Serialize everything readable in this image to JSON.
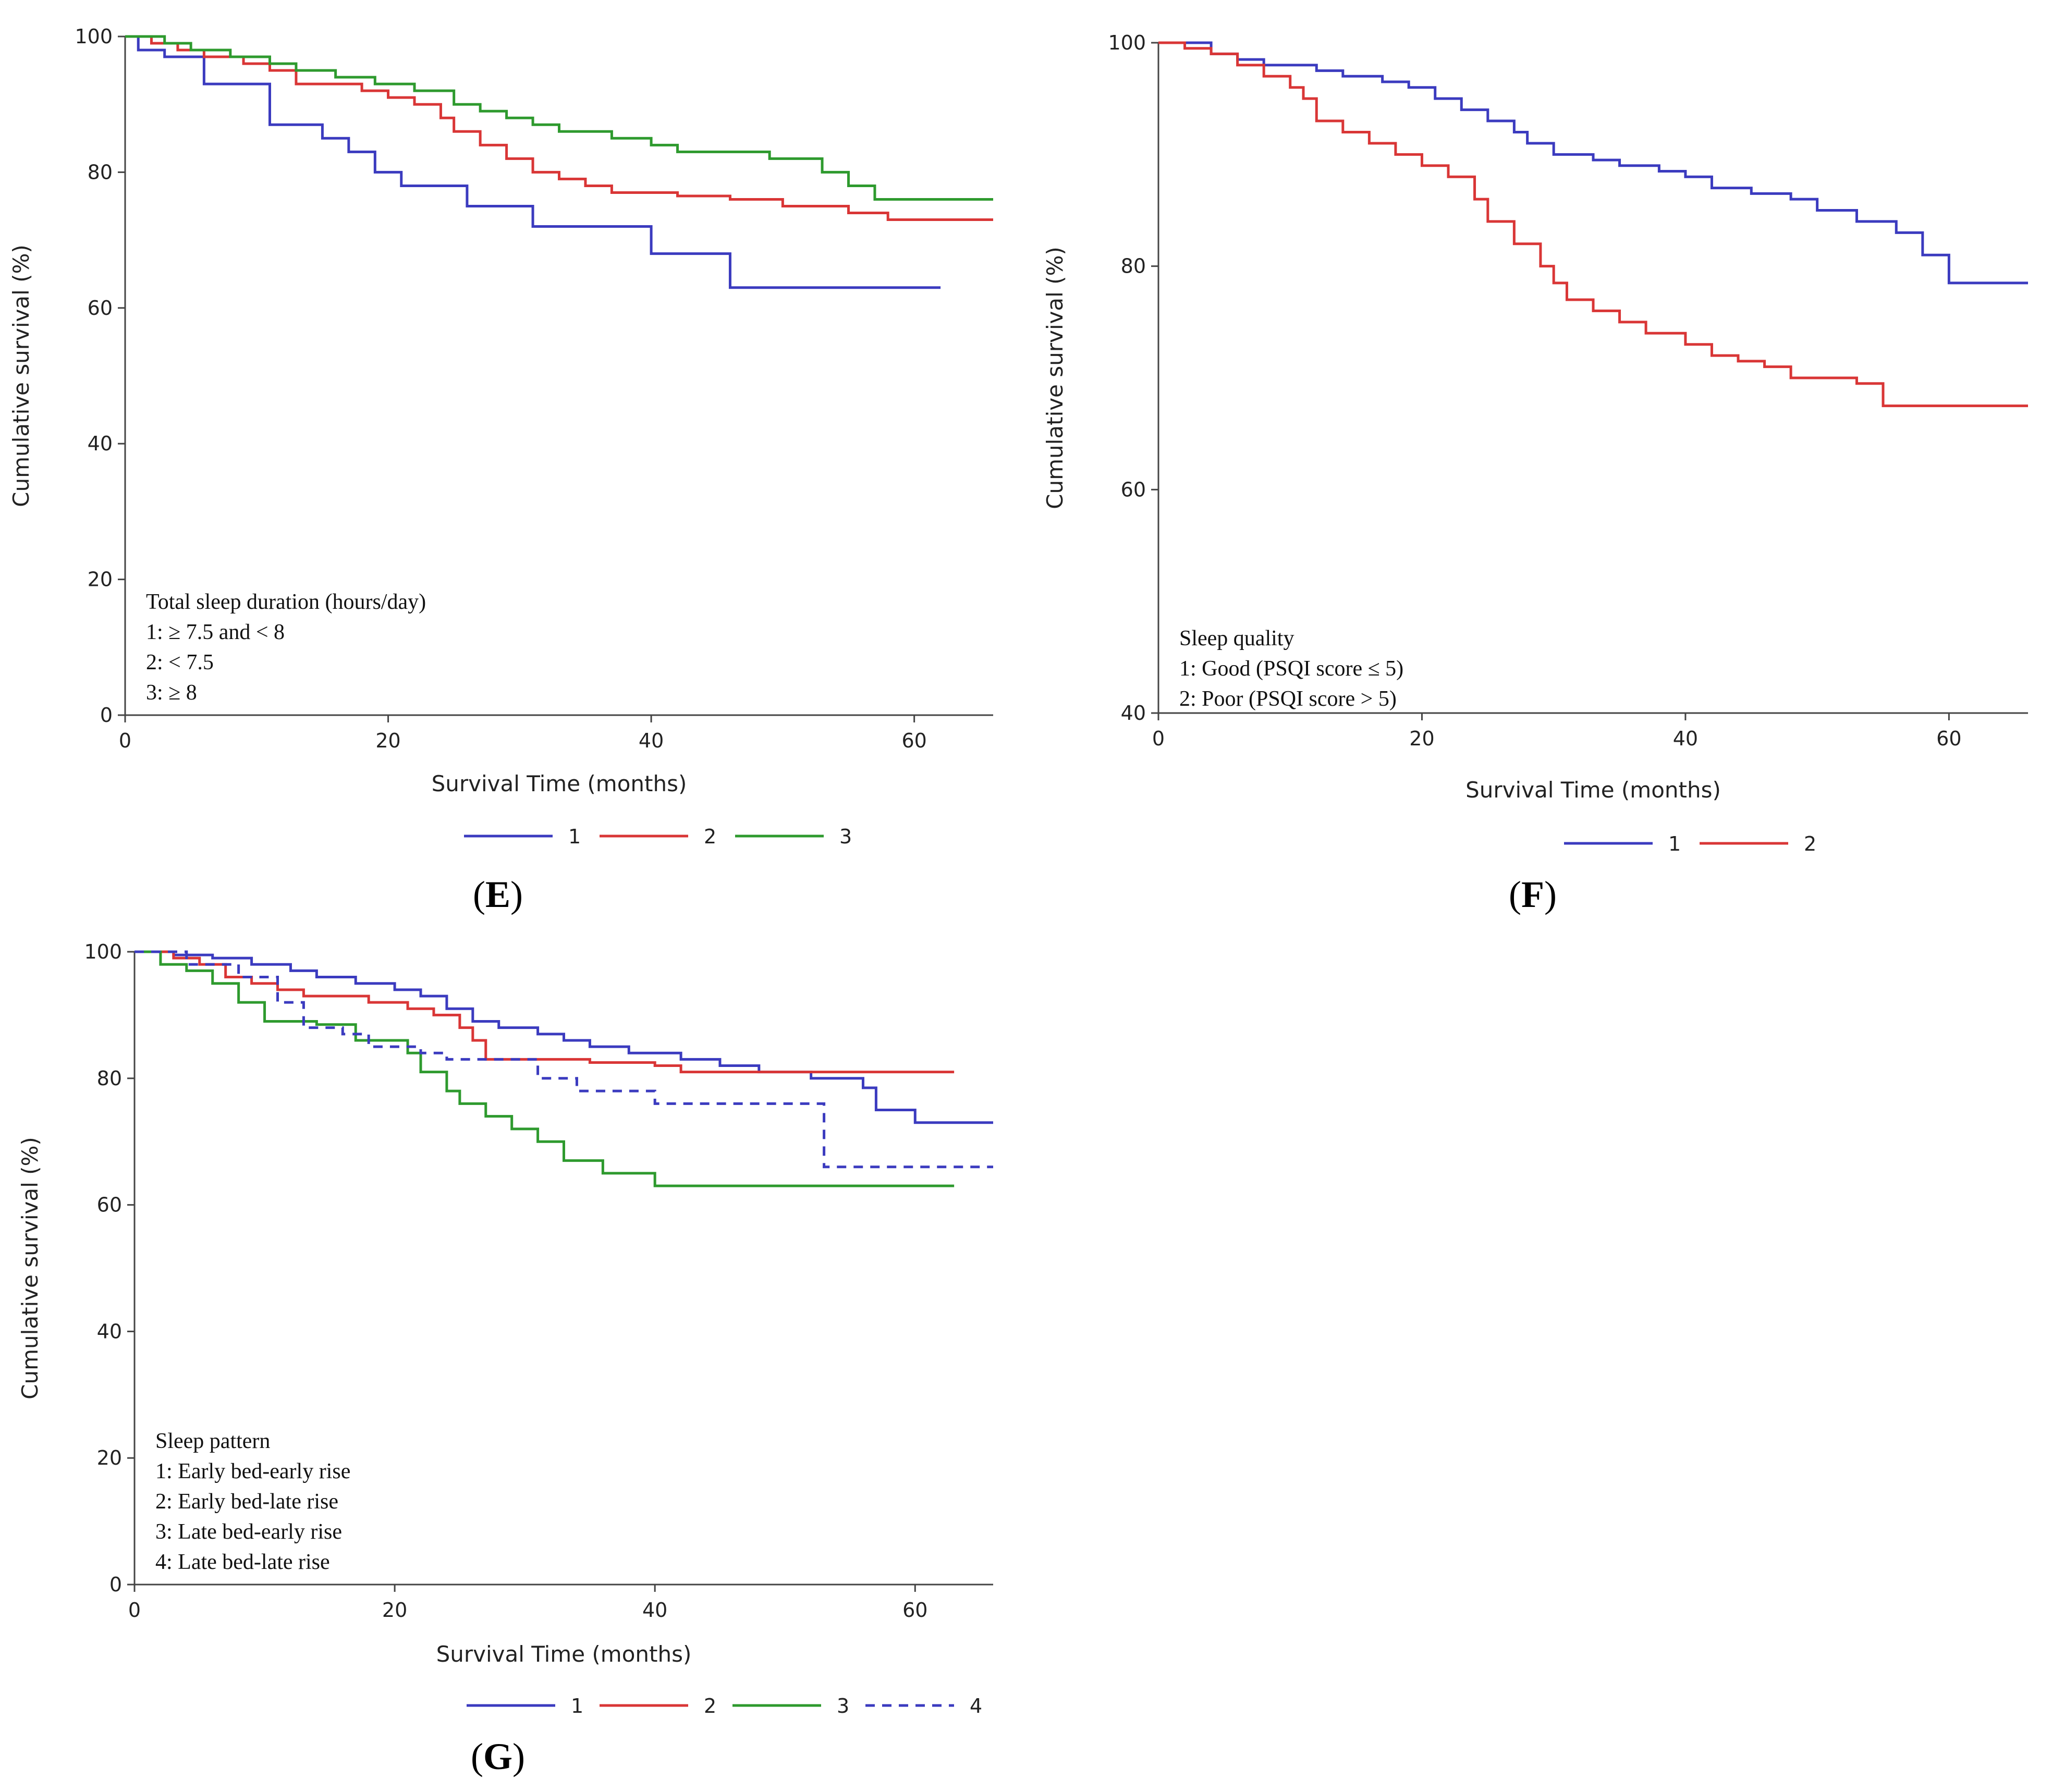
{
  "panels": [
    {
      "label": "E",
      "chart_data": {
        "type": "line",
        "step": true,
        "xlabel": "Survival Time (months)",
        "ylabel": "Cumulative survival (%)",
        "xlim": [
          0,
          66
        ],
        "ylim": [
          0,
          100
        ],
        "xticks": [
          0,
          20,
          40,
          60
        ],
        "yticks": [
          0,
          20,
          40,
          60,
          80,
          100
        ],
        "legend_position": "bottom",
        "annotation": {
          "title": "Total sleep duration (hours/day)",
          "lines": [
            "1: ≥ 7.5 and < 8",
            "2: < 7.5",
            "3: ≥ 8"
          ]
        },
        "series": [
          {
            "name": "1",
            "color": "#3b3bbf",
            "dashed": false,
            "points": [
              [
                0,
                100
              ],
              [
                1,
                98
              ],
              [
                3,
                97
              ],
              [
                6,
                93
              ],
              [
                11,
                87
              ],
              [
                15,
                85
              ],
              [
                17,
                83
              ],
              [
                19,
                80
              ],
              [
                21,
                78
              ],
              [
                26,
                75
              ],
              [
                31,
                72
              ],
              [
                40,
                68
              ],
              [
                46,
                63
              ],
              [
                62,
                63
              ]
            ]
          },
          {
            "name": "2",
            "color": "#d93636",
            "dashed": false,
            "points": [
              [
                0,
                100
              ],
              [
                2,
                99
              ],
              [
                4,
                98
              ],
              [
                6,
                97
              ],
              [
                9,
                96
              ],
              [
                11,
                95
              ],
              [
                13,
                93
              ],
              [
                18,
                92
              ],
              [
                20,
                91
              ],
              [
                22,
                90
              ],
              [
                24,
                88
              ],
              [
                25,
                86
              ],
              [
                27,
                84
              ],
              [
                29,
                82
              ],
              [
                31,
                80
              ],
              [
                33,
                79
              ],
              [
                35,
                78
              ],
              [
                37,
                77
              ],
              [
                42,
                76.5
              ],
              [
                46,
                76
              ],
              [
                50,
                75
              ],
              [
                55,
                74
              ],
              [
                58,
                73
              ],
              [
                66,
                73
              ]
            ]
          },
          {
            "name": "3",
            "color": "#2e9a2e",
            "dashed": false,
            "points": [
              [
                0,
                100
              ],
              [
                3,
                99
              ],
              [
                5,
                98
              ],
              [
                8,
                97
              ],
              [
                11,
                96
              ],
              [
                13,
                95
              ],
              [
                16,
                94
              ],
              [
                19,
                93
              ],
              [
                22,
                92
              ],
              [
                25,
                90
              ],
              [
                27,
                89
              ],
              [
                29,
                88
              ],
              [
                31,
                87
              ],
              [
                33,
                86
              ],
              [
                37,
                85
              ],
              [
                40,
                84
              ],
              [
                42,
                83
              ],
              [
                49,
                82
              ],
              [
                53,
                80
              ],
              [
                55,
                78
              ],
              [
                57,
                76
              ],
              [
                66,
                76
              ]
            ]
          }
        ]
      },
      "legend": [
        "1",
        "2",
        "3"
      ]
    },
    {
      "label": "F",
      "chart_data": {
        "type": "line",
        "step": true,
        "xlabel": "Survival Time (months)",
        "ylabel": "Cumulative survival (%)",
        "xlim": [
          0,
          66
        ],
        "ylim": [
          40,
          100
        ],
        "xticks": [
          0,
          20,
          40,
          60
        ],
        "yticks": [
          40,
          60,
          80,
          100
        ],
        "legend_position": "bottom",
        "annotation": {
          "title": "Sleep quality",
          "lines": [
            "1: Good (PSQI score ≤ 5)",
            "2: Poor (PSQI score > 5)"
          ]
        },
        "series": [
          {
            "name": "1",
            "color": "#3b3bbf",
            "dashed": false,
            "points": [
              [
                0,
                100
              ],
              [
                4,
                99
              ],
              [
                6,
                98.5
              ],
              [
                8,
                98
              ],
              [
                12,
                97.5
              ],
              [
                14,
                97
              ],
              [
                17,
                96.5
              ],
              [
                19,
                96
              ],
              [
                21,
                95
              ],
              [
                23,
                94
              ],
              [
                25,
                93
              ],
              [
                27,
                92
              ],
              [
                28,
                91
              ],
              [
                30,
                90
              ],
              [
                33,
                89.5
              ],
              [
                35,
                89
              ],
              [
                38,
                88.5
              ],
              [
                40,
                88
              ],
              [
                42,
                87
              ],
              [
                45,
                86.5
              ],
              [
                48,
                86
              ],
              [
                50,
                85
              ],
              [
                53,
                84
              ],
              [
                56,
                83
              ],
              [
                58,
                81
              ],
              [
                60,
                78.5
              ],
              [
                66,
                78.5
              ]
            ]
          },
          {
            "name": "2",
            "color": "#d93636",
            "dashed": false,
            "points": [
              [
                0,
                100
              ],
              [
                2,
                99.5
              ],
              [
                4,
                99
              ],
              [
                6,
                98
              ],
              [
                8,
                97
              ],
              [
                10,
                96
              ],
              [
                11,
                95
              ],
              [
                12,
                93
              ],
              [
                14,
                92
              ],
              [
                16,
                91
              ],
              [
                18,
                90
              ],
              [
                20,
                89
              ],
              [
                22,
                88
              ],
              [
                24,
                86
              ],
              [
                25,
                84
              ],
              [
                27,
                82
              ],
              [
                29,
                80
              ],
              [
                30,
                78.5
              ],
              [
                31,
                77
              ],
              [
                33,
                76
              ],
              [
                35,
                75
              ],
              [
                37,
                74
              ],
              [
                40,
                73
              ],
              [
                42,
                72
              ],
              [
                44,
                71.5
              ],
              [
                46,
                71
              ],
              [
                48,
                70
              ],
              [
                53,
                69.5
              ],
              [
                55,
                67.5
              ],
              [
                66,
                67.5
              ]
            ]
          }
        ]
      },
      "legend": [
        "1",
        "2"
      ]
    },
    {
      "label": "G",
      "chart_data": {
        "type": "line",
        "step": true,
        "xlabel": "Survival Time (months)",
        "ylabel": "Cumulative survival (%)",
        "xlim": [
          0,
          66
        ],
        "ylim": [
          0,
          100
        ],
        "xticks": [
          0,
          20,
          40,
          60
        ],
        "yticks": [
          0,
          20,
          40,
          60,
          80,
          100
        ],
        "legend_position": "bottom",
        "annotation": {
          "title": "Sleep pattern",
          "lines": [
            "1: Early bed-early rise",
            "2: Early bed-late rise",
            "3: Late bed-early rise",
            "4: Late bed-late rise"
          ]
        },
        "series": [
          {
            "name": "1",
            "color": "#3b3bbf",
            "dashed": false,
            "points": [
              [
                0,
                100
              ],
              [
                3,
                99.5
              ],
              [
                6,
                99
              ],
              [
                9,
                98
              ],
              [
                12,
                97
              ],
              [
                14,
                96
              ],
              [
                17,
                95
              ],
              [
                20,
                94
              ],
              [
                22,
                93
              ],
              [
                24,
                91
              ],
              [
                26,
                89
              ],
              [
                28,
                88
              ],
              [
                31,
                87
              ],
              [
                33,
                86
              ],
              [
                35,
                85
              ],
              [
                38,
                84
              ],
              [
                42,
                83
              ],
              [
                45,
                82
              ],
              [
                48,
                81
              ],
              [
                52,
                80
              ],
              [
                56,
                78.5
              ],
              [
                57,
                75
              ],
              [
                60,
                73
              ],
              [
                66,
                73
              ]
            ]
          },
          {
            "name": "2",
            "color": "#d93636",
            "dashed": false,
            "points": [
              [
                0,
                100
              ],
              [
                3,
                99
              ],
              [
                5,
                98
              ],
              [
                7,
                96
              ],
              [
                9,
                95
              ],
              [
                11,
                94
              ],
              [
                13,
                93
              ],
              [
                18,
                92
              ],
              [
                21,
                91
              ],
              [
                23,
                90
              ],
              [
                25,
                88
              ],
              [
                26,
                86
              ],
              [
                27,
                83
              ],
              [
                31,
                83
              ],
              [
                35,
                82.5
              ],
              [
                40,
                82
              ],
              [
                42,
                81
              ],
              [
                46,
                81
              ],
              [
                63,
                81
              ]
            ]
          },
          {
            "name": "3",
            "color": "#2e9a2e",
            "dashed": false,
            "points": [
              [
                0,
                100
              ],
              [
                2,
                98
              ],
              [
                4,
                97
              ],
              [
                6,
                95
              ],
              [
                8,
                92
              ],
              [
                10,
                89
              ],
              [
                14,
                88.5
              ],
              [
                17,
                86
              ],
              [
                21,
                84
              ],
              [
                22,
                81
              ],
              [
                24,
                78
              ],
              [
                25,
                76
              ],
              [
                27,
                74
              ],
              [
                29,
                72
              ],
              [
                31,
                70
              ],
              [
                33,
                67
              ],
              [
                36,
                65
              ],
              [
                40,
                63
              ],
              [
                63,
                63
              ]
            ]
          },
          {
            "name": "4",
            "color": "#3b3bbf",
            "dashed": true,
            "points": [
              [
                0,
                100
              ],
              [
                4,
                98
              ],
              [
                8,
                96
              ],
              [
                11,
                92
              ],
              [
                13,
                88
              ],
              [
                16,
                87
              ],
              [
                18,
                85
              ],
              [
                22,
                84
              ],
              [
                24,
                83
              ],
              [
                31,
                80
              ],
              [
                34,
                78
              ],
              [
                40,
                76
              ],
              [
                53,
                74
              ],
              [
                53,
                66
              ],
              [
                66,
                66
              ]
            ]
          }
        ]
      },
      "legend": [
        "1",
        "2",
        "3",
        "4"
      ]
    }
  ]
}
